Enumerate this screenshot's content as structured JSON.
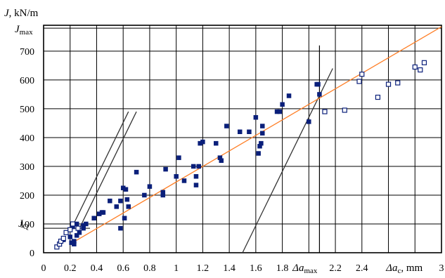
{
  "chart_data": {
    "type": "scatter",
    "title": "",
    "ylabel": "J, kN/m",
    "xlabel": "Δa_c, mm",
    "xlim": [
      0,
      3.0
    ],
    "ylim": [
      0,
      790
    ],
    "x_ticks": [
      {
        "v": 0,
        "t": "0"
      },
      {
        "v": 0.2,
        "t": "0.2"
      },
      {
        "v": 0.4,
        "t": "0.4"
      },
      {
        "v": 0.6,
        "t": "0.6"
      },
      {
        "v": 0.8,
        "t": "0.8"
      },
      {
        "v": 1.0,
        "t": "1"
      },
      {
        "v": 1.2,
        "t": "1.2"
      },
      {
        "v": 1.4,
        "t": "1.4"
      },
      {
        "v": 1.6,
        "t": "1.6"
      },
      {
        "v": 1.8,
        "t": "1.8"
      },
      {
        "v": 2.2,
        "t": "2.2"
      },
      {
        "v": 2.4,
        "t": "2.4"
      },
      {
        "v": 3.0,
        "t": "3"
      }
    ],
    "y_ticks": [
      0,
      100,
      200,
      300,
      400,
      500,
      600,
      700
    ],
    "x_gridlines": [
      0.2,
      0.4,
      0.6,
      0.8,
      1.0,
      1.2,
      1.4,
      1.6,
      1.8,
      2.0,
      2.2,
      2.4,
      2.6,
      2.8
    ],
    "grid": true,
    "annotations": {
      "j_max": {
        "y": 780,
        "label": "J",
        "sub": "max"
      },
      "j_q": {
        "y": 85,
        "label": "J",
        "sub": "Q"
      },
      "da_max": {
        "x": 2.08,
        "label": "Δa",
        "sub": "max"
      },
      "da_c_label": {
        "label": "Δa",
        "sub": "c",
        "unit": ", mm"
      }
    },
    "fit_line": {
      "color": "#ff7f27",
      "points": [
        [
          0.2,
          30
        ],
        [
          3.0,
          785
        ]
      ]
    },
    "construction_lines": [
      {
        "points": [
          [
            0.2,
            75
          ],
          [
            0.64,
            490
          ]
        ]
      },
      {
        "points": [
          [
            0.26,
            75
          ],
          [
            0.7,
            490
          ]
        ]
      },
      {
        "points": [
          [
            1.5,
            0
          ],
          [
            2.18,
            640
          ]
        ]
      }
    ],
    "hline_jq": {
      "x": [
        0,
        0.35
      ],
      "y": 85
    },
    "vline_damax": {
      "x": 2.08,
      "y": [
        0,
        720
      ]
    },
    "series": [
      {
        "marker": "filled-square",
        "color": "#0a1f7a",
        "points": [
          [
            0.15,
            45
          ],
          [
            0.2,
            55
          ],
          [
            0.21,
            35
          ],
          [
            0.22,
            90
          ],
          [
            0.23,
            40
          ],
          [
            0.23,
            30
          ],
          [
            0.25,
            100
          ],
          [
            0.25,
            60
          ],
          [
            0.27,
            70
          ],
          [
            0.3,
            85
          ],
          [
            0.3,
            95
          ],
          [
            0.32,
            100
          ],
          [
            0.38,
            120
          ],
          [
            0.42,
            135
          ],
          [
            0.44,
            140
          ],
          [
            0.45,
            140
          ],
          [
            0.5,
            180
          ],
          [
            0.55,
            160
          ],
          [
            0.58,
            180
          ],
          [
            0.6,
            225
          ],
          [
            0.62,
            220
          ],
          [
            0.63,
            185
          ],
          [
            0.64,
            160
          ],
          [
            0.58,
            85
          ],
          [
            0.61,
            120
          ],
          [
            0.7,
            280
          ],
          [
            0.76,
            200
          ],
          [
            0.8,
            230
          ],
          [
            0.9,
            210
          ],
          [
            0.9,
            200
          ],
          [
            0.92,
            290
          ],
          [
            1.0,
            265
          ],
          [
            1.02,
            330
          ],
          [
            1.06,
            250
          ],
          [
            1.13,
            300
          ],
          [
            1.15,
            235
          ],
          [
            1.15,
            265
          ],
          [
            1.17,
            300
          ],
          [
            1.18,
            380
          ],
          [
            1.2,
            385
          ],
          [
            1.3,
            380
          ],
          [
            1.33,
            330
          ],
          [
            1.34,
            320
          ],
          [
            1.38,
            440
          ],
          [
            1.48,
            420
          ],
          [
            1.55,
            420
          ],
          [
            1.6,
            470
          ],
          [
            1.62,
            345
          ],
          [
            1.63,
            370
          ],
          [
            1.64,
            380
          ],
          [
            1.65,
            440
          ],
          [
            1.65,
            415
          ],
          [
            1.76,
            490
          ],
          [
            1.78,
            490
          ],
          [
            1.8,
            515
          ],
          [
            1.85,
            545
          ],
          [
            2.0,
            455
          ],
          [
            2.06,
            585
          ],
          [
            2.07,
            585
          ],
          [
            2.08,
            550
          ]
        ]
      },
      {
        "marker": "open-square",
        "color": "#0a1f7a",
        "points": [
          [
            0.1,
            20
          ],
          [
            0.12,
            30
          ],
          [
            0.13,
            40
          ],
          [
            0.15,
            50
          ],
          [
            0.17,
            70
          ],
          [
            0.2,
            80
          ],
          [
            0.22,
            100
          ],
          [
            0.26,
            85
          ],
          [
            2.12,
            490
          ],
          [
            2.27,
            495
          ],
          [
            2.38,
            595
          ],
          [
            2.4,
            620
          ],
          [
            2.52,
            540
          ],
          [
            2.6,
            585
          ],
          [
            2.67,
            590
          ],
          [
            2.8,
            645
          ],
          [
            2.84,
            635
          ],
          [
            2.87,
            660
          ]
        ]
      }
    ]
  }
}
